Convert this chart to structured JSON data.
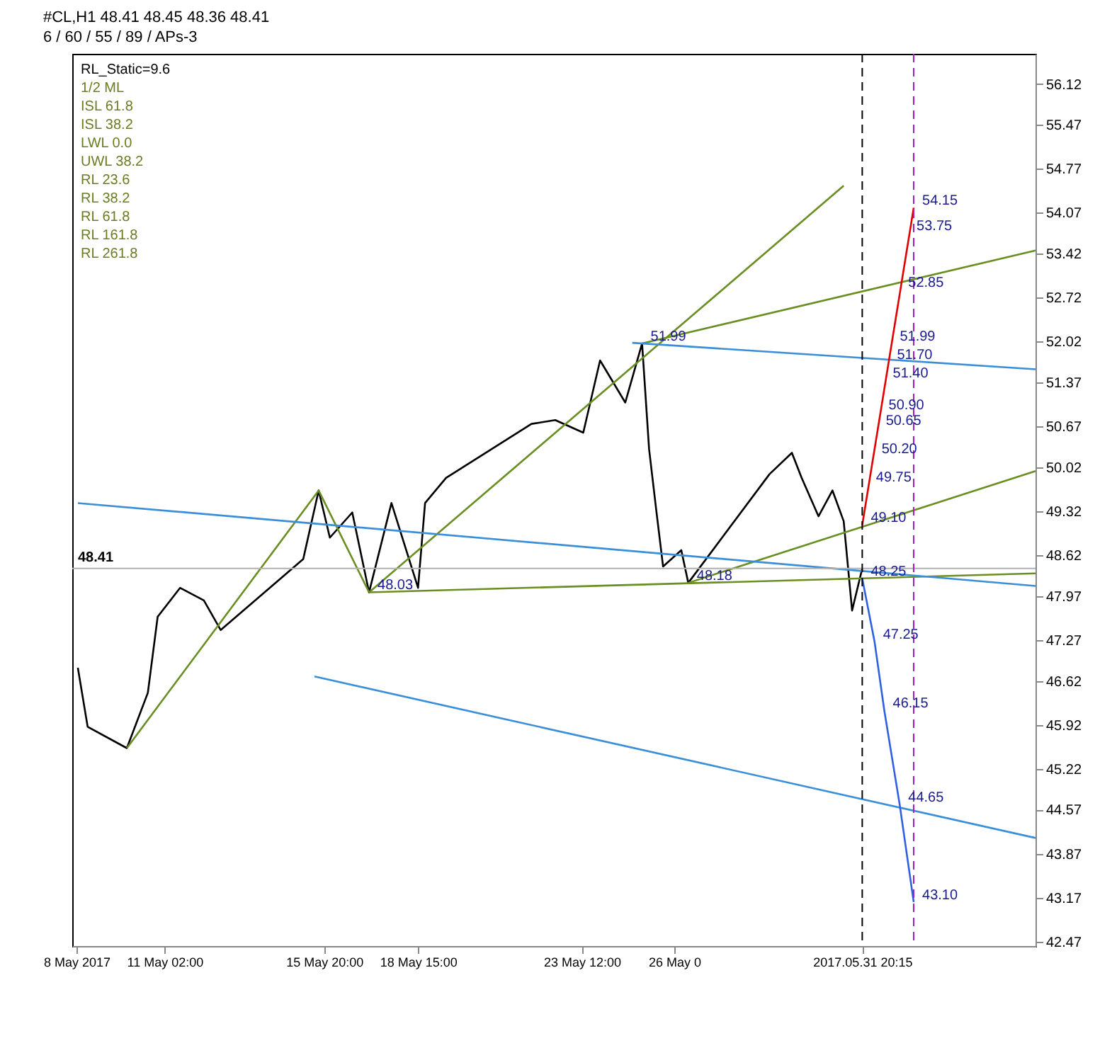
{
  "chart_data": {
    "type": "line",
    "title": "#CL,H1  48.41 48.45 48.36 48.41",
    "subtitle": "6 / 60 / 55 / 89 / APs-3",
    "xlim": [
      "2017-05-08T08:00",
      "2017-06-06T00:00"
    ],
    "ylim": [
      42.4,
      56.6
    ],
    "xticks": [
      {
        "value": "2017-05-08T11:00",
        "label": "8 May 2017"
      },
      {
        "value": "2017-05-11T02:00",
        "label": "11 May 02:00"
      },
      {
        "value": "2017-05-15T20:00",
        "label": "15 May 20:00"
      },
      {
        "value": "2017-05-18T15:00",
        "label": "18 May 15:00"
      },
      {
        "value": "2017-05-23T12:00",
        "label": "23 May 12:00"
      },
      {
        "value": "2017-05-26T06:00",
        "label": "26 May 0"
      },
      {
        "value": "2017-05-31T20:15",
        "label": "2017.05.31 20:15"
      }
    ],
    "yticks": [
      42.47,
      43.17,
      43.87,
      44.57,
      45.22,
      45.92,
      46.62,
      47.27,
      47.97,
      48.62,
      49.32,
      50.02,
      50.67,
      51.37,
      52.02,
      52.72,
      53.42,
      54.07,
      54.77,
      55.47,
      56.12
    ],
    "grid": false,
    "marker": "none",
    "series": [
      {
        "color": "#000000",
        "line_style": "solid",
        "x": [
          "2017-05-08T12:00",
          "2017-05-08T19:00",
          "2017-05-09T23:00",
          "2017-05-10T14:00",
          "2017-05-10T21:00",
          "2017-05-11T13:00",
          "2017-05-12T06:00",
          "2017-05-12T18:00",
          "2017-05-15T05:00",
          "2017-05-15T16:00",
          "2017-05-16T00:00",
          "2017-05-16T16:00",
          "2017-05-17T04:00",
          "2017-05-17T20:00",
          "2017-05-18T15:00",
          "2017-05-18T20:00",
          "2017-05-19T11:00",
          "2017-05-22T00:00",
          "2017-05-22T17:00",
          "2017-05-23T13:00",
          "2017-05-24T01:00",
          "2017-05-24T19:00",
          "2017-05-25T07:00",
          "2017-05-25T12:00",
          "2017-05-25T17:00",
          "2017-05-25T22:00",
          "2017-05-26T11:00",
          "2017-05-26T16:00",
          "2017-05-29T02:00",
          "2017-05-29T18:00",
          "2017-05-30T01:00",
          "2017-05-30T13:00",
          "2017-05-30T23:00",
          "2017-05-31T07:00",
          "2017-05-31T13:00",
          "2017-05-31T20:15"
        ],
        "values": [
          46.83,
          45.89,
          45.55,
          46.43,
          47.64,
          48.1,
          47.9,
          47.43,
          48.56,
          49.65,
          48.9,
          49.3,
          48.03,
          49.45,
          48.1,
          49.45,
          49.85,
          50.71,
          50.77,
          50.57,
          51.72,
          51.05,
          51.99,
          50.31,
          49.36,
          48.44,
          48.7,
          48.18,
          49.91,
          50.25,
          49.85,
          49.24,
          49.65,
          49.16,
          47.74,
          48.41
        ]
      },
      {
        "color": "#6b8e23",
        "line_style": "solid",
        "x": [
          "2017-05-09T23:00",
          "2017-05-15T16:00",
          "2017-05-17T04:00"
        ],
        "values": [
          45.55,
          49.65,
          48.03
        ]
      },
      {
        "color": "#6b8e23",
        "line_style": "solid",
        "x": [
          "2017-05-17T04:00",
          "2017-05-31T07:00"
        ],
        "values": [
          48.03,
          54.5
        ]
      },
      {
        "color": "#6b8e23",
        "line_style": "solid",
        "x": [
          "2017-05-25T07:00",
          "2017-06-06T00:00"
        ],
        "values": [
          51.99,
          53.47
        ]
      },
      {
        "color": "#6b8e23",
        "line_style": "solid",
        "x": [
          "2017-05-26T16:00",
          "2017-06-06T00:00"
        ],
        "values": [
          48.18,
          49.96
        ]
      },
      {
        "color": "#6b8e23",
        "line_style": "solid",
        "x": [
          "2017-05-17T04:00",
          "2017-06-06T00:00"
        ],
        "values": [
          48.03,
          48.33
        ]
      },
      {
        "color": "#3a8fd8",
        "line_style": "solid",
        "x": [
          "2017-05-25T00:00",
          "2017-06-06T00:00"
        ],
        "values": [
          52.0,
          51.58
        ]
      },
      {
        "color": "#3a8fd8",
        "line_style": "solid",
        "x": [
          "2017-05-08T12:00",
          "2017-06-06T00:00"
        ],
        "values": [
          49.45,
          48.13
        ]
      },
      {
        "color": "#3a8fd8",
        "line_style": "solid",
        "x": [
          "2017-05-15T13:00",
          "2017-06-06T00:00"
        ],
        "values": [
          46.69,
          44.12
        ]
      },
      {
        "color": "#e00000",
        "line_style": "solid",
        "x": [
          "2017-05-31T20:15",
          "2017-06-02T09:00"
        ],
        "values": [
          49.1,
          54.15
        ]
      },
      {
        "color": "#3060e0",
        "line_style": "solid",
        "x": [
          "2017-05-31T20:15",
          "2017-06-01T05:00",
          "2017-06-01T12:00",
          "2017-06-01T23:00",
          "2017-06-02T09:00"
        ],
        "values": [
          48.25,
          47.25,
          46.15,
          44.65,
          43.1
        ]
      }
    ],
    "ref_lines": [
      {
        "axis": "y",
        "value": 48.41,
        "label": "48.41",
        "color": "#b0b0b0",
        "line_style": "solid"
      },
      {
        "axis": "x",
        "value": "2017-05-31T20:15",
        "color": "#000000",
        "line_style": "dashed"
      },
      {
        "axis": "x",
        "value": "2017-06-02T09:00",
        "color": "#a020c0",
        "line_style": "dashed"
      }
    ],
    "annotations": [
      "RL_Static=9.6",
      "1/2 ML",
      "ISL 61.8",
      "ISL 38.2",
      "LWL 0.0",
      "UWL 38.2",
      "RL 23.6",
      "RL 38.2",
      "RL 61.8",
      "RL 161.8",
      "RL 261.8",
      {
        "text": "51.99",
        "x": "2017-05-25T07:00",
        "y": 51.99
      },
      {
        "text": "48.03",
        "x": "2017-05-17T04:00",
        "y": 48.03
      },
      {
        "text": "48.18",
        "x": "2017-05-26T16:00",
        "y": 48.18
      },
      {
        "text": "54.15",
        "x": "2017-06-02T09:00",
        "y": 54.15
      },
      {
        "text": "53.75",
        "x": "2017-06-02T05:00",
        "y": 53.75
      },
      {
        "text": "52.85",
        "x": "2017-06-01T23:00",
        "y": 52.85
      },
      {
        "text": "51.99",
        "x": "2017-06-01T17:00",
        "y": 51.99
      },
      {
        "text": "51.70",
        "x": "2017-06-01T15:00",
        "y": 51.7
      },
      {
        "text": "51.40",
        "x": "2017-06-01T12:00",
        "y": 51.4
      },
      {
        "text": "50.90",
        "x": "2017-06-01T09:00",
        "y": 50.9
      },
      {
        "text": "50.65",
        "x": "2017-06-01T07:00",
        "y": 50.65
      },
      {
        "text": "50.20",
        "x": "2017-06-01T04:00",
        "y": 50.2
      },
      {
        "text": "49.75",
        "x": "2017-06-01T00:00",
        "y": 49.75
      },
      {
        "text": "49.10",
        "x": "2017-05-31T20:15",
        "y": 49.1
      },
      {
        "text": "48.25",
        "x": "2017-05-31T20:15",
        "y": 48.25
      },
      {
        "text": "47.25",
        "x": "2017-06-01T05:00",
        "y": 47.25
      },
      {
        "text": "46.15",
        "x": "2017-06-01T12:00",
        "y": 46.15
      },
      {
        "text": "44.65",
        "x": "2017-06-01T23:00",
        "y": 44.65
      },
      {
        "text": "43.10",
        "x": "2017-06-02T09:00",
        "y": 43.1
      }
    ]
  }
}
